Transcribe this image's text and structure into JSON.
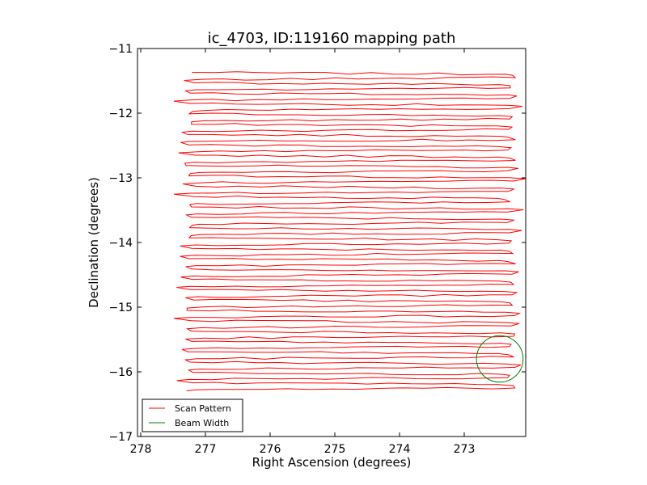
{
  "chart_data": {
    "type": "line",
    "title": "ic_4703, ID:119160 mapping path",
    "xlabel": "Right Ascension (degrees)",
    "ylabel": "Declination (degrees)",
    "xlim": [
      278.05,
      272.05
    ],
    "ylim": [
      -17,
      -11
    ],
    "x_inverted": true,
    "xticks": [
      278,
      277,
      276,
      275,
      274,
      273
    ],
    "xtick_labels": [
      "278",
      "277",
      "276",
      "275",
      "274",
      "273"
    ],
    "yticks": [
      -11,
      -12,
      -13,
      -14,
      -15,
      -16,
      -17
    ],
    "ytick_labels": [
      "−11",
      "−12",
      "−13",
      "−14",
      "−15",
      "−16",
      "−17"
    ],
    "grid": false,
    "legend_placement": "lower-left",
    "series": [
      {
        "name": "Scan Pattern",
        "color": "#ff0000",
        "pattern": "boustrophedon raster scan",
        "ra_range": [
          272.2,
          277.3
        ],
        "dec_start": -11.37,
        "dec_end": -16.25,
        "row_spacing_deg": 0.08,
        "jitter_amplitude_deg": 0.05,
        "x": [
          277.2,
          272.2,
          277.2,
          272.2,
          277.2,
          272.2
        ],
        "y": [
          -11.37,
          -11.45,
          -11.53,
          -11.61,
          -11.69,
          -11.77
        ]
      },
      {
        "name": "Beam Width",
        "color": "#008000",
        "shape": "circle",
        "center_ra": 272.45,
        "center_dec": -15.8,
        "radius_deg": 0.36
      }
    ]
  }
}
